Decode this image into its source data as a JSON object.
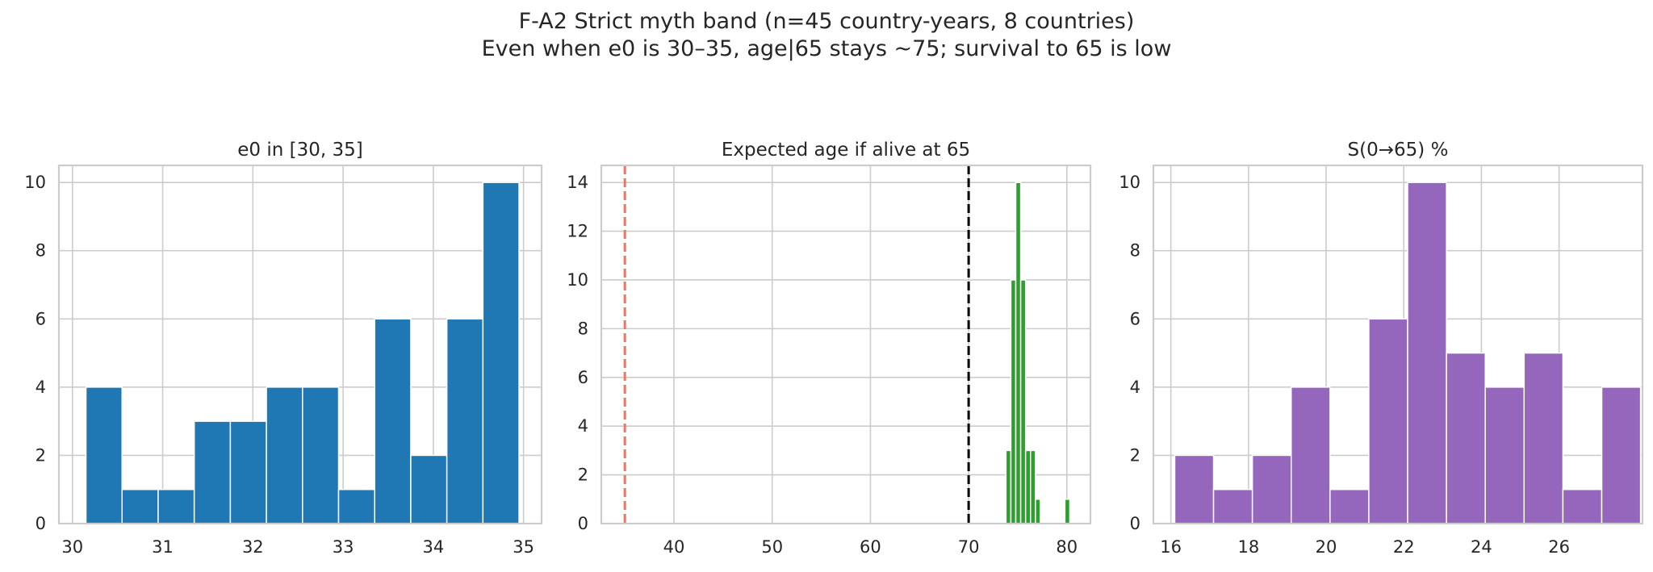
{
  "figure": {
    "suptitle_line1": "F-A2 Strict myth band (n=45 country-years, 8 countries)",
    "suptitle_line2": "Even when e0 is 30–35, age|65 stays ~75; survival to 65 is low"
  },
  "chart_data": [
    {
      "type": "bar",
      "title": "e0 in [30, 35]",
      "xlabel": "",
      "ylabel": "",
      "color": "#1f77b4",
      "xlim": [
        29.85,
        35.2
      ],
      "ylim": [
        0,
        10.5
      ],
      "xticks": [
        30,
        31,
        32,
        33,
        34,
        35
      ],
      "yticks": [
        0,
        2,
        4,
        6,
        8,
        10
      ],
      "grid": true,
      "bins": [
        {
          "x0": 30.15,
          "x1": 30.55,
          "count": 4
        },
        {
          "x0": 30.55,
          "x1": 30.95,
          "count": 1
        },
        {
          "x0": 30.95,
          "x1": 31.35,
          "count": 1
        },
        {
          "x0": 31.35,
          "x1": 31.75,
          "count": 3
        },
        {
          "x0": 31.75,
          "x1": 32.15,
          "count": 3
        },
        {
          "x0": 32.15,
          "x1": 32.55,
          "count": 4
        },
        {
          "x0": 32.55,
          "x1": 32.95,
          "count": 4
        },
        {
          "x0": 32.95,
          "x1": 33.35,
          "count": 1
        },
        {
          "x0": 33.35,
          "x1": 33.75,
          "count": 6
        },
        {
          "x0": 33.75,
          "x1": 34.15,
          "count": 2
        },
        {
          "x0": 34.15,
          "x1": 34.55,
          "count": 6
        },
        {
          "x0": 34.55,
          "x1": 34.95,
          "count": 10
        }
      ],
      "vlines": []
    },
    {
      "type": "bar",
      "title": "Expected age if alive at 65",
      "xlabel": "",
      "ylabel": "",
      "color": "#2ca02c",
      "xlim": [
        32.6,
        82.4
      ],
      "ylim": [
        0,
        14.7
      ],
      "xticks": [
        40,
        50,
        60,
        70,
        80
      ],
      "yticks": [
        0,
        2,
        4,
        6,
        8,
        10,
        12,
        14
      ],
      "grid": true,
      "bins": [
        {
          "x0": 73.8,
          "x1": 74.3,
          "count": 3
        },
        {
          "x0": 74.3,
          "x1": 74.8,
          "count": 10
        },
        {
          "x0": 74.8,
          "x1": 75.3,
          "count": 14
        },
        {
          "x0": 75.3,
          "x1": 75.8,
          "count": 10
        },
        {
          "x0": 75.8,
          "x1": 76.3,
          "count": 3
        },
        {
          "x0": 76.3,
          "x1": 76.8,
          "count": 3
        },
        {
          "x0": 76.8,
          "x1": 77.3,
          "count": 1
        },
        {
          "x0": 79.8,
          "x1": 80.3,
          "count": 1
        }
      ],
      "vlines": [
        {
          "x": 35,
          "color": "#ff6f61",
          "style": "dashed"
        },
        {
          "x": 70,
          "color": "#000000",
          "style": "dashed"
        }
      ]
    },
    {
      "type": "bar",
      "title": "S(0→65) %",
      "xlabel": "",
      "ylabel": "",
      "color": "#9467bd",
      "xlim": [
        15.55,
        28.15
      ],
      "ylim": [
        0,
        10.5
      ],
      "xticks": [
        16,
        18,
        20,
        22,
        24,
        26
      ],
      "yticks": [
        0,
        2,
        4,
        6,
        8,
        10
      ],
      "grid": true,
      "bins": [
        {
          "x0": 16.1,
          "x1": 17.1,
          "count": 2
        },
        {
          "x0": 17.1,
          "x1": 18.1,
          "count": 1
        },
        {
          "x0": 18.1,
          "x1": 19.1,
          "count": 2
        },
        {
          "x0": 19.1,
          "x1": 20.1,
          "count": 4
        },
        {
          "x0": 20.1,
          "x1": 21.1,
          "count": 1
        },
        {
          "x0": 21.1,
          "x1": 22.1,
          "count": 6
        },
        {
          "x0": 22.1,
          "x1": 23.1,
          "count": 10
        },
        {
          "x0": 23.1,
          "x1": 24.1,
          "count": 5
        },
        {
          "x0": 24.1,
          "x1": 25.1,
          "count": 4
        },
        {
          "x0": 25.1,
          "x1": 26.1,
          "count": 5
        },
        {
          "x0": 26.1,
          "x1": 27.1,
          "count": 1
        },
        {
          "x0": 27.1,
          "x1": 28.1,
          "count": 4
        }
      ],
      "vlines": []
    }
  ]
}
